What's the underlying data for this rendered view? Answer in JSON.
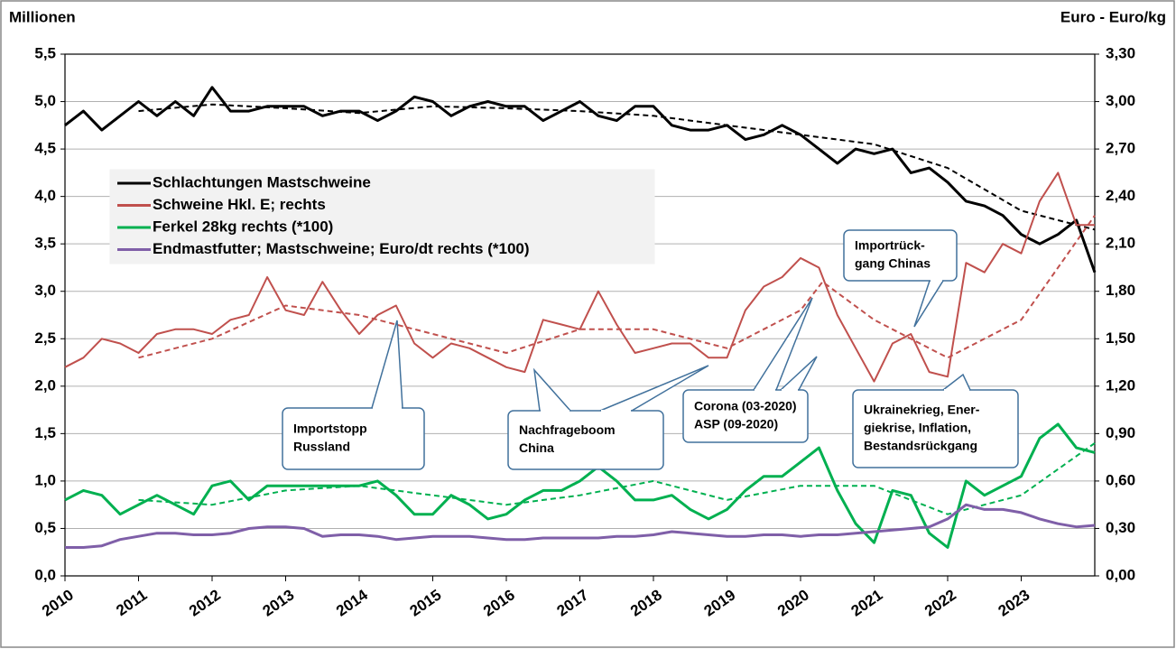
{
  "chart_data": {
    "type": "line",
    "y_axis_title": "Millionen",
    "y2_axis_title": "Euro - Euro/kg",
    "xlim": [
      2010,
      2024
    ],
    "xticks": [
      2010,
      2011,
      2012,
      2013,
      2014,
      2015,
      2016,
      2017,
      2018,
      2019,
      2020,
      2021,
      2022,
      2023
    ],
    "ylim": [
      0,
      5.5
    ],
    "yticks": [
      {
        "value": 0,
        "label": "0,0"
      },
      {
        "value": 0.5,
        "label": "0,5"
      },
      {
        "value": 1,
        "label": "1,0"
      },
      {
        "value": 1.5,
        "label": "1,5"
      },
      {
        "value": 2,
        "label": "2,0"
      },
      {
        "value": 2.5,
        "label": "2,5"
      },
      {
        "value": 3,
        "label": "3,0"
      },
      {
        "value": 3.5,
        "label": "3,5"
      },
      {
        "value": 4,
        "label": "4,0"
      },
      {
        "value": 4.5,
        "label": "4,5"
      },
      {
        "value": 5,
        "label": "5,0"
      },
      {
        "value": 5.5,
        "label": "5,5"
      }
    ],
    "y2lim": [
      0,
      3.3
    ],
    "y2ticks": [
      {
        "value": 0,
        "label": "0,00"
      },
      {
        "value": 0.3,
        "label": "0,30"
      },
      {
        "value": 0.6,
        "label": "0,60"
      },
      {
        "value": 0.9,
        "label": "0,90"
      },
      {
        "value": 1.2,
        "label": "1,20"
      },
      {
        "value": 1.5,
        "label": "1,50"
      },
      {
        "value": 1.8,
        "label": "1,80"
      },
      {
        "value": 2.1,
        "label": "2,10"
      },
      {
        "value": 2.4,
        "label": "2,40"
      },
      {
        "value": 2.7,
        "label": "2,70"
      },
      {
        "value": 3.0,
        "label": "3,00"
      },
      {
        "value": 3.3,
        "label": "3,30"
      }
    ],
    "grid": true,
    "legend": "upper left",
    "x": [
      2010,
      2010.25,
      2010.5,
      2010.75,
      2011,
      2011.25,
      2011.5,
      2011.75,
      2012,
      2012.25,
      2012.5,
      2012.75,
      2013,
      2013.25,
      2013.5,
      2013.75,
      2014,
      2014.25,
      2014.5,
      2014.75,
      2015,
      2015.25,
      2015.5,
      2015.75,
      2016,
      2016.25,
      2016.5,
      2016.75,
      2017,
      2017.25,
      2017.5,
      2017.75,
      2018,
      2018.25,
      2018.5,
      2018.75,
      2019,
      2019.25,
      2019.5,
      2019.75,
      2020,
      2020.25,
      2020.5,
      2020.75,
      2021,
      2021.25,
      2021.5,
      2021.75,
      2022,
      2022.25,
      2022.5,
      2022.75,
      2023,
      2023.25,
      2023.5,
      2023.75,
      2024
    ],
    "series": [
      {
        "name": "Schlachtungen Mastschweine",
        "color": "#000000",
        "width": 3,
        "axis": "y",
        "values": [
          4.75,
          4.9,
          4.7,
          4.85,
          5.0,
          4.85,
          5.0,
          4.85,
          5.15,
          4.9,
          4.9,
          4.95,
          4.95,
          4.95,
          4.85,
          4.9,
          4.9,
          4.8,
          4.9,
          5.05,
          5.0,
          4.85,
          4.95,
          5.0,
          4.95,
          4.95,
          4.8,
          4.9,
          5.0,
          4.85,
          4.8,
          4.95,
          4.95,
          4.75,
          4.7,
          4.7,
          4.75,
          4.6,
          4.65,
          4.75,
          4.65,
          4.5,
          4.35,
          4.5,
          4.45,
          4.5,
          4.25,
          4.3,
          4.15,
          3.95,
          3.9,
          3.8,
          3.6,
          3.5,
          3.6,
          3.75,
          3.2
        ],
        "trend": {
          "x": [
            2011,
            2012,
            2013,
            2014,
            2015,
            2016,
            2017,
            2018,
            2019,
            2020,
            2021,
            2022,
            2023,
            2024
          ],
          "values": [
            4.9,
            4.97,
            4.93,
            4.88,
            4.95,
            4.93,
            4.9,
            4.85,
            4.75,
            4.65,
            4.55,
            4.3,
            3.85,
            3.65
          ]
        }
      },
      {
        "name": "Schweine Hkl. E; rechts",
        "color": "#c0504d",
        "width": 2,
        "axis": "y2",
        "values": [
          1.32,
          1.38,
          1.5,
          1.47,
          1.41,
          1.53,
          1.56,
          1.56,
          1.53,
          1.62,
          1.65,
          1.89,
          1.68,
          1.65,
          1.86,
          1.68,
          1.53,
          1.65,
          1.71,
          1.47,
          1.38,
          1.47,
          1.44,
          1.38,
          1.32,
          1.29,
          1.62,
          1.59,
          1.56,
          1.8,
          1.59,
          1.41,
          1.44,
          1.47,
          1.47,
          1.38,
          1.38,
          1.68,
          1.83,
          1.89,
          2.01,
          1.95,
          1.65,
          1.44,
          1.23,
          1.47,
          1.53,
          1.29,
          1.26,
          1.98,
          1.92,
          2.1,
          2.04,
          2.37,
          2.55,
          2.22,
          2.22
        ],
        "trend": {
          "x": [
            2011,
            2012,
            2013,
            2014,
            2015,
            2016,
            2017,
            2018,
            2019,
            2020,
            2020.3,
            2021,
            2022,
            2023,
            2024
          ],
          "values": [
            1.38,
            1.5,
            1.71,
            1.65,
            1.53,
            1.41,
            1.56,
            1.56,
            1.44,
            1.68,
            1.86,
            1.62,
            1.38,
            1.62,
            2.28
          ]
        }
      },
      {
        "name": "Ferkel 28kg rechts (*100)",
        "color": "#00b050",
        "width": 3,
        "axis": "y2",
        "values": [
          0.48,
          0.54,
          0.51,
          0.39,
          0.45,
          0.51,
          0.45,
          0.39,
          0.57,
          0.6,
          0.48,
          0.57,
          0.57,
          0.57,
          0.57,
          0.57,
          0.57,
          0.6,
          0.51,
          0.39,
          0.39,
          0.51,
          0.45,
          0.36,
          0.39,
          0.48,
          0.54,
          0.54,
          0.6,
          0.69,
          0.6,
          0.48,
          0.48,
          0.51,
          0.42,
          0.36,
          0.42,
          0.54,
          0.63,
          0.63,
          0.72,
          0.81,
          0.54,
          0.33,
          0.21,
          0.54,
          0.51,
          0.27,
          0.18,
          0.6,
          0.51,
          0.57,
          0.63,
          0.87,
          0.96,
          0.81,
          0.78
        ],
        "trend": {
          "x": [
            2011,
            2012,
            2013,
            2014,
            2015,
            2016,
            2017,
            2018,
            2019,
            2020,
            2021,
            2022,
            2023,
            2024
          ],
          "values": [
            0.48,
            0.45,
            0.54,
            0.57,
            0.51,
            0.45,
            0.51,
            0.6,
            0.48,
            0.57,
            0.57,
            0.39,
            0.51,
            0.84
          ]
        }
      },
      {
        "name": "Endmastfutter; Mastschweine; Euro/dt rechts (*100)",
        "color": "#7f5fa8",
        "width": 3,
        "axis": "y2",
        "values": [
          0.18,
          0.18,
          0.19,
          0.23,
          0.25,
          0.27,
          0.27,
          0.26,
          0.26,
          0.27,
          0.3,
          0.31,
          0.31,
          0.3,
          0.25,
          0.26,
          0.26,
          0.25,
          0.23,
          0.24,
          0.25,
          0.25,
          0.25,
          0.24,
          0.23,
          0.23,
          0.24,
          0.24,
          0.24,
          0.24,
          0.25,
          0.25,
          0.26,
          0.28,
          0.27,
          0.26,
          0.25,
          0.25,
          0.26,
          0.26,
          0.25,
          0.26,
          0.26,
          0.27,
          0.28,
          0.29,
          0.3,
          0.31,
          0.36,
          0.45,
          0.42,
          0.42,
          0.4,
          0.36,
          0.33,
          0.31,
          0.32
        ]
      }
    ],
    "annotations": [
      {
        "lines": [
          "Importstopp",
          "Russland"
        ]
      },
      {
        "lines": [
          "Nachfrageboom",
          "China"
        ]
      },
      {
        "lines": [
          "Corona (03-2020)",
          "ASP (09-2020)"
        ]
      },
      {
        "lines": [
          "Importrück-",
          "gang Chinas"
        ]
      },
      {
        "lines": [
          "Ukrainekrieg, Ener-",
          "giekrise, Inflation,",
          "Bestandsrückgang"
        ]
      }
    ]
  }
}
